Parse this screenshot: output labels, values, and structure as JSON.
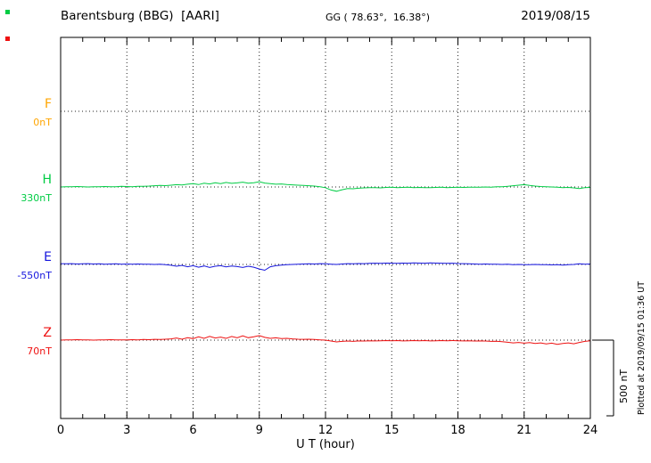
{
  "header": {
    "note": ""
  },
  "chart_data": {
    "type": "line",
    "title": "Barentsburg (BBG)  [AARI]",
    "coords": "GG ( 78.63°,  16.38°)",
    "date": "2019/08/15",
    "xlabel": "U T (hour)",
    "ylabel": "",
    "x_range": [
      0,
      24
    ],
    "x_ticks": [
      0,
      3,
      6,
      9,
      12,
      15,
      18,
      21,
      24
    ],
    "grid": "dotted vertical at 3h intervals, dotted horizontal baselines",
    "scale_bar": {
      "label": "500 nT",
      "nT": 500
    },
    "plotted_at": "Plotted at 2019/09/15 01:36 UT",
    "series": [
      {
        "name": "F",
        "baseline_label": "0nT",
        "baseline_nT": 0,
        "color": "#FFA500",
        "values": []
      },
      {
        "name": "H",
        "baseline_label": "330nT",
        "baseline_nT": 330,
        "color": "#00CC44",
        "values": [
          330,
          332,
          331,
          333,
          332,
          330,
          331,
          332,
          333,
          331,
          332,
          334,
          333,
          332,
          334,
          335,
          336,
          338,
          340,
          339,
          342,
          345,
          343,
          348,
          352,
          346,
          355,
          350,
          358,
          352,
          360,
          354,
          357,
          362,
          355,
          358,
          365,
          356,
          352,
          348,
          350,
          346,
          344,
          342,
          340,
          338,
          336,
          332,
          325,
          310,
          302,
          312,
          320,
          318,
          322,
          324,
          325,
          326,
          324,
          327,
          328,
          326,
          327,
          328,
          326,
          327,
          325,
          326,
          327,
          328,
          326,
          327,
          328,
          327,
          328,
          329,
          328,
          330,
          329,
          331,
          332,
          334,
          338,
          342,
          345,
          340,
          336,
          333,
          332,
          330,
          328,
          326,
          327,
          324,
          320,
          325,
          327
        ]
      },
      {
        "name": "E",
        "baseline_label": "-550nT",
        "baseline_nT": -550,
        "color": "#1515DD",
        "values": [
          -545,
          -546,
          -545,
          -547,
          -546,
          -545,
          -547,
          -546,
          -548,
          -547,
          -546,
          -548,
          -547,
          -548,
          -547,
          -549,
          -548,
          -550,
          -549,
          -552,
          -555,
          -562,
          -556,
          -565,
          -558,
          -568,
          -560,
          -570,
          -562,
          -558,
          -566,
          -560,
          -564,
          -570,
          -562,
          -568,
          -580,
          -588,
          -565,
          -558,
          -554,
          -552,
          -550,
          -548,
          -547,
          -546,
          -547,
          -545,
          -546,
          -548,
          -550,
          -547,
          -545,
          -546,
          -544,
          -545,
          -543,
          -542,
          -543,
          -541,
          -542,
          -543,
          -541,
          -542,
          -540,
          -541,
          -542,
          -540,
          -541,
          -542,
          -543,
          -542,
          -544,
          -545,
          -546,
          -547,
          -548,
          -547,
          -549,
          -548,
          -550,
          -549,
          -551,
          -550,
          -552,
          -551,
          -550,
          -552,
          -551,
          -553,
          -552,
          -554,
          -552,
          -550,
          -546,
          -548,
          -547
        ]
      },
      {
        "name": "Z",
        "baseline_label": "70nT",
        "baseline_nT": 70,
        "color": "#EE1111",
        "values": [
          70,
          72,
          71,
          73,
          71,
          72,
          70,
          72,
          71,
          73,
          72,
          71,
          72,
          73,
          72,
          74,
          73,
          75,
          74,
          76,
          78,
          84,
          76,
          86,
          80,
          92,
          82,
          95,
          84,
          90,
          82,
          94,
          85,
          98,
          86,
          92,
          100,
          88,
          82,
          85,
          80,
          82,
          78,
          76,
          75,
          76,
          74,
          72,
          70,
          64,
          58,
          62,
          64,
          62,
          65,
          64,
          66,
          65,
          66,
          67,
          66,
          67,
          65,
          66,
          67,
          66,
          67,
          65,
          66,
          67,
          66,
          67,
          66,
          65,
          66,
          64,
          65,
          64,
          62,
          63,
          60,
          56,
          52,
          55,
          50,
          54,
          48,
          52,
          45,
          50,
          42,
          48,
          52,
          46,
          55,
          62,
          66
        ]
      }
    ]
  }
}
